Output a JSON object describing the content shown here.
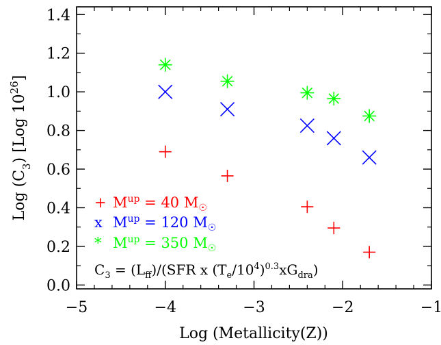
{
  "chart_data": {
    "type": "scatter",
    "xlabel": "Log (Metallicity(Z))",
    "ylabel_parts": {
      "prefix": "Log (C",
      "sub": "3",
      "mid": ") [Log 10",
      "sup": "26",
      "suffix": "]"
    },
    "xlim": [
      -5,
      -1
    ],
    "ylim": [
      -0.02,
      1.44
    ],
    "x_ticks": [
      -5,
      -4,
      -3,
      -2,
      -1
    ],
    "x_tick_labels": [
      "−5",
      "−4",
      "−3",
      "−2",
      "−1"
    ],
    "y_ticks": [
      0.0,
      0.2,
      0.4,
      0.6,
      0.8,
      1.0,
      1.2,
      1.4
    ],
    "y_tick_labels": [
      "0.0",
      "0.2",
      "0.4",
      "0.6",
      "0.8",
      "1.0",
      "1.2",
      "1.4"
    ],
    "grid": false,
    "series": [
      {
        "name": "M^up = 40 M☉",
        "marker": "plus",
        "color": "#ff0000",
        "legend_symbol": "+",
        "legend_label": {
          "m": "M",
          "sup": "up",
          "rest": " = 40 M",
          "sun": "☉"
        },
        "points": [
          {
            "x": -4.0,
            "y": 0.69
          },
          {
            "x": -3.3,
            "y": 0.565
          },
          {
            "x": -2.4,
            "y": 0.405
          },
          {
            "x": -2.1,
            "y": 0.295
          },
          {
            "x": -1.7,
            "y": 0.17
          }
        ]
      },
      {
        "name": "M^up = 120 M☉",
        "marker": "x",
        "color": "#0000ff",
        "legend_symbol": "x",
        "legend_label": {
          "m": "M",
          "sup": "up",
          "rest": " = 120 M",
          "sun": "☉"
        },
        "points": [
          {
            "x": -4.0,
            "y": 1.0
          },
          {
            "x": -3.3,
            "y": 0.91
          },
          {
            "x": -2.4,
            "y": 0.825
          },
          {
            "x": -2.1,
            "y": 0.76
          },
          {
            "x": -1.7,
            "y": 0.66
          }
        ]
      },
      {
        "name": "M^up = 350 M☉",
        "marker": "asterisk",
        "color": "#00ff00",
        "legend_symbol": "*",
        "legend_label": {
          "m": "M",
          "sup": "up",
          "rest": " = 350 M",
          "sun": "☉"
        },
        "points": [
          {
            "x": -4.0,
            "y": 1.14
          },
          {
            "x": -3.3,
            "y": 1.055
          },
          {
            "x": -2.4,
            "y": 0.995
          },
          {
            "x": -2.1,
            "y": 0.965
          },
          {
            "x": -1.7,
            "y": 0.875
          }
        ]
      }
    ],
    "legend_position": "bottom-left",
    "annotation": {
      "c": "C",
      "c_sub": "3",
      "p1": " = (L",
      "ff_sub": "ff",
      "p2": ")/(SFR x (T",
      "e_sub": "e",
      "p3": "/10",
      "four_sup": "4",
      "p4": ")",
      "exp_sup": "0.3",
      "p5": "xG",
      "dra_sub": "dra",
      "p6": ")"
    }
  }
}
